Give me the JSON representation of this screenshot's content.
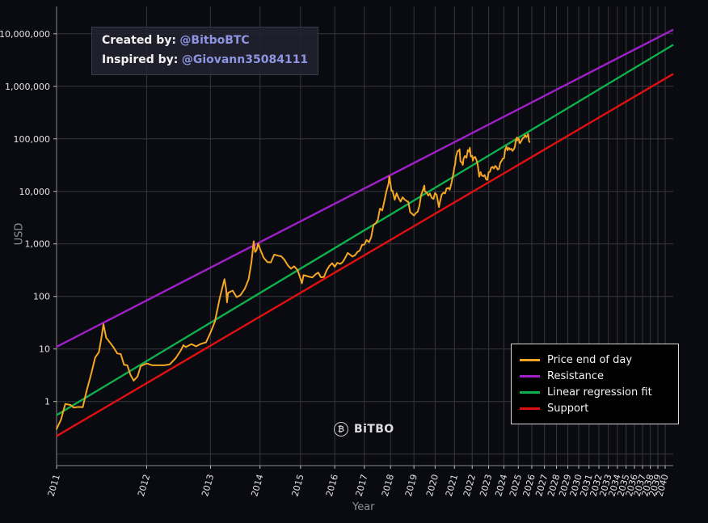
{
  "annotation": {
    "handle_color": "#8d95e2",
    "lines": [
      {
        "label": "Created by:",
        "handle": "@BitboBTC"
      },
      {
        "label": "Inspired by:",
        "handle": "@Giovann35084111"
      }
    ]
  },
  "logo": {
    "icon": "₿",
    "text": "BiTBO"
  },
  "chart_data": {
    "type": "line",
    "title": "",
    "grid": true,
    "legend_position": "lower right",
    "x_axis": {
      "title": "Year",
      "scale": "log-time",
      "ref_year": 2009,
      "t_min": 2,
      "t_max": 32.15,
      "ticks": [
        "2011",
        "2012",
        "2013",
        "2014",
        "2015",
        "2016",
        "2017",
        "2018",
        "2019",
        "2020",
        "2021",
        "2022",
        "2023",
        "2024",
        "2025",
        "2026",
        "2027",
        "2028",
        "2029",
        "2030",
        "2031",
        "2032",
        "2033",
        "2034",
        "2035",
        "2036",
        "2037",
        "2038",
        "2039",
        "2040"
      ]
    },
    "y_axis": {
      "title": "USD",
      "scale": "log",
      "log_min": -1.22,
      "log_max": 7.52,
      "ticks": [
        {
          "value": 10000000,
          "label": "10,000,000"
        },
        {
          "value": 1000000,
          "label": "1,000,000"
        },
        {
          "value": 100000,
          "label": "100,000"
        },
        {
          "value": 10000,
          "label": "10,000"
        },
        {
          "value": 1000,
          "label": "1,000"
        },
        {
          "value": 100,
          "label": "100"
        },
        {
          "value": 10,
          "label": "10"
        },
        {
          "value": 1,
          "label": "1"
        }
      ]
    },
    "series": [
      {
        "name": "Price end of day",
        "type": "line",
        "color": "#f5a623",
        "points": [
          [
            2011.0,
            0.3
          ],
          [
            2011.04,
            0.45
          ],
          [
            2011.08,
            0.9
          ],
          [
            2011.13,
            0.86
          ],
          [
            2011.16,
            0.77
          ],
          [
            2011.21,
            0.79
          ],
          [
            2011.25,
            0.78
          ],
          [
            2011.29,
            1.6
          ],
          [
            2011.33,
            3.0
          ],
          [
            2011.38,
            6.9
          ],
          [
            2011.42,
            8.7
          ],
          [
            2011.45,
            17.5
          ],
          [
            2011.47,
            29.6
          ],
          [
            2011.5,
            16.5
          ],
          [
            2011.54,
            13.5
          ],
          [
            2011.58,
            11.0
          ],
          [
            2011.63,
            8.2
          ],
          [
            2011.67,
            8.0
          ],
          [
            2011.71,
            5.0
          ],
          [
            2011.75,
            4.9
          ],
          [
            2011.79,
            3.2
          ],
          [
            2011.83,
            2.5
          ],
          [
            2011.88,
            3.0
          ],
          [
            2011.92,
            4.7
          ],
          [
            2012.0,
            5.3
          ],
          [
            2012.08,
            4.9
          ],
          [
            2012.17,
            4.9
          ],
          [
            2012.25,
            4.9
          ],
          [
            2012.33,
            5.1
          ],
          [
            2012.42,
            6.7
          ],
          [
            2012.5,
            9.4
          ],
          [
            2012.54,
            11.8
          ],
          [
            2012.58,
            10.9
          ],
          [
            2012.67,
            12.4
          ],
          [
            2012.75,
            11.2
          ],
          [
            2012.83,
            12.5
          ],
          [
            2012.92,
            13.4
          ],
          [
            2013.0,
            20.4
          ],
          [
            2013.08,
            33.4
          ],
          [
            2013.17,
            93
          ],
          [
            2013.26,
            213
          ],
          [
            2013.29,
            140
          ],
          [
            2013.31,
            77
          ],
          [
            2013.33,
            117
          ],
          [
            2013.42,
            129
          ],
          [
            2013.5,
            97
          ],
          [
            2013.58,
            106
          ],
          [
            2013.67,
            141
          ],
          [
            2013.75,
            212
          ],
          [
            2013.81,
            450
          ],
          [
            2013.86,
            1120
          ],
          [
            2013.89,
            700
          ],
          [
            2013.92,
            755
          ],
          [
            2013.96,
            1010
          ],
          [
            2014.0,
            805
          ],
          [
            2014.08,
            550
          ],
          [
            2014.17,
            450
          ],
          [
            2014.25,
            445
          ],
          [
            2014.33,
            628
          ],
          [
            2014.42,
            598
          ],
          [
            2014.5,
            582
          ],
          [
            2014.58,
            500
          ],
          [
            2014.67,
            388
          ],
          [
            2014.75,
            338
          ],
          [
            2014.83,
            376
          ],
          [
            2014.92,
            320
          ],
          [
            2015.0,
            217
          ],
          [
            2015.04,
            178
          ],
          [
            2015.08,
            254
          ],
          [
            2015.17,
            245
          ],
          [
            2015.25,
            236
          ],
          [
            2015.33,
            230
          ],
          [
            2015.42,
            263
          ],
          [
            2015.5,
            285
          ],
          [
            2015.58,
            230
          ],
          [
            2015.67,
            236
          ],
          [
            2015.75,
            314
          ],
          [
            2015.83,
            378
          ],
          [
            2015.92,
            430
          ],
          [
            2016.0,
            368
          ],
          [
            2016.08,
            437
          ],
          [
            2016.17,
            416
          ],
          [
            2016.25,
            448
          ],
          [
            2016.33,
            531
          ],
          [
            2016.42,
            673
          ],
          [
            2016.5,
            625
          ],
          [
            2016.58,
            575
          ],
          [
            2016.67,
            610
          ],
          [
            2016.75,
            700
          ],
          [
            2016.83,
            745
          ],
          [
            2016.92,
            963
          ],
          [
            2017.0,
            970
          ],
          [
            2017.08,
            1190
          ],
          [
            2017.17,
            1080
          ],
          [
            2017.25,
            1350
          ],
          [
            2017.33,
            2290
          ],
          [
            2017.42,
            2480
          ],
          [
            2017.5,
            2875
          ],
          [
            2017.58,
            4700
          ],
          [
            2017.67,
            4340
          ],
          [
            2017.75,
            6450
          ],
          [
            2017.83,
            9920
          ],
          [
            2017.92,
            14200
          ],
          [
            2017.95,
            19100
          ],
          [
            2018.0,
            13900
          ],
          [
            2018.04,
            10200
          ],
          [
            2018.08,
            10300
          ],
          [
            2018.13,
            8250
          ],
          [
            2018.17,
            6930
          ],
          [
            2018.25,
            9240
          ],
          [
            2018.33,
            7500
          ],
          [
            2018.42,
            6400
          ],
          [
            2018.5,
            7730
          ],
          [
            2018.58,
            7030
          ],
          [
            2018.67,
            6600
          ],
          [
            2018.75,
            6320
          ],
          [
            2018.83,
            4020
          ],
          [
            2018.92,
            3740
          ],
          [
            2019.0,
            3460
          ],
          [
            2019.08,
            3850
          ],
          [
            2019.17,
            4100
          ],
          [
            2019.25,
            5320
          ],
          [
            2019.33,
            8560
          ],
          [
            2019.42,
            10800
          ],
          [
            2019.48,
            12900
          ],
          [
            2019.5,
            10100
          ],
          [
            2019.58,
            9590
          ],
          [
            2019.67,
            8300
          ],
          [
            2019.75,
            9150
          ],
          [
            2019.83,
            7550
          ],
          [
            2019.92,
            7190
          ],
          [
            2020.0,
            9350
          ],
          [
            2020.08,
            8550
          ],
          [
            2020.19,
            5030
          ],
          [
            2020.25,
            6440
          ],
          [
            2020.33,
            8650
          ],
          [
            2020.42,
            9450
          ],
          [
            2020.5,
            9140
          ],
          [
            2020.58,
            11350
          ],
          [
            2020.67,
            11650
          ],
          [
            2020.75,
            10780
          ],
          [
            2020.83,
            13800
          ],
          [
            2020.92,
            19700
          ],
          [
            2021.0,
            29000
          ],
          [
            2021.04,
            33100
          ],
          [
            2021.08,
            45100
          ],
          [
            2021.17,
            58800
          ],
          [
            2021.25,
            58900
          ],
          [
            2021.28,
            63500
          ],
          [
            2021.33,
            37300
          ],
          [
            2021.42,
            35000
          ],
          [
            2021.46,
            31800
          ],
          [
            2021.5,
            41500
          ],
          [
            2021.58,
            47100
          ],
          [
            2021.67,
            43800
          ],
          [
            2021.75,
            61300
          ],
          [
            2021.83,
            57000
          ],
          [
            2021.86,
            67600
          ],
          [
            2021.92,
            46200
          ],
          [
            2022.0,
            47700
          ],
          [
            2022.04,
            38500
          ],
          [
            2022.08,
            43200
          ],
          [
            2022.17,
            45500
          ],
          [
            2022.25,
            39700
          ],
          [
            2022.33,
            31800
          ],
          [
            2022.42,
            19000
          ],
          [
            2022.5,
            23300
          ],
          [
            2022.58,
            20000
          ],
          [
            2022.67,
            19400
          ],
          [
            2022.75,
            20500
          ],
          [
            2022.83,
            17200
          ],
          [
            2022.92,
            16500
          ],
          [
            2023.0,
            23100
          ],
          [
            2023.08,
            23500
          ],
          [
            2023.17,
            28500
          ],
          [
            2023.25,
            29200
          ],
          [
            2023.33,
            27200
          ],
          [
            2023.42,
            30500
          ],
          [
            2023.5,
            29200
          ],
          [
            2023.58,
            26000
          ],
          [
            2023.67,
            26900
          ],
          [
            2023.75,
            34600
          ],
          [
            2023.83,
            37700
          ],
          [
            2023.92,
            42300
          ],
          [
            2024.0,
            42600
          ],
          [
            2024.08,
            61200
          ],
          [
            2024.17,
            71300
          ],
          [
            2024.21,
            64000
          ],
          [
            2024.25,
            60600
          ],
          [
            2024.33,
            67500
          ],
          [
            2024.42,
            62700
          ],
          [
            2024.5,
            64600
          ],
          [
            2024.58,
            59000
          ],
          [
            2024.67,
            63300
          ],
          [
            2024.75,
            70200
          ],
          [
            2024.83,
            96400
          ],
          [
            2024.9,
            106000
          ],
          [
            2024.92,
            93400
          ],
          [
            2025.0,
            102000
          ],
          [
            2025.04,
            97800
          ],
          [
            2025.08,
            84300
          ],
          [
            2025.13,
            82500
          ],
          [
            2025.17,
            86800
          ],
          [
            2025.25,
            94200
          ],
          [
            2025.33,
            104000
          ],
          [
            2025.42,
            107000
          ],
          [
            2025.5,
            118000
          ],
          [
            2025.54,
            114000
          ],
          [
            2025.58,
            108000
          ],
          [
            2025.63,
            112000
          ],
          [
            2025.67,
            114000
          ],
          [
            2025.72,
            124000
          ],
          [
            2025.75,
            110000
          ],
          [
            2025.79,
            91000
          ],
          [
            2025.83,
            87000
          ]
        ]
      },
      {
        "name": "Resistance",
        "type": "powerlaw",
        "color": "#a020c8",
        "anchors": [
          [
            2011,
            11
          ],
          [
            2040,
            10000000
          ]
        ]
      },
      {
        "name": "Linear regression fit",
        "type": "powerlaw",
        "color": "#0faf4d",
        "anchors": [
          [
            2011,
            0.55
          ],
          [
            2040,
            5000000
          ]
        ]
      },
      {
        "name": "Support",
        "type": "powerlaw",
        "color": "#e01010",
        "anchors": [
          [
            2011,
            0.22
          ],
          [
            2040,
            1400000
          ]
        ]
      }
    ]
  }
}
